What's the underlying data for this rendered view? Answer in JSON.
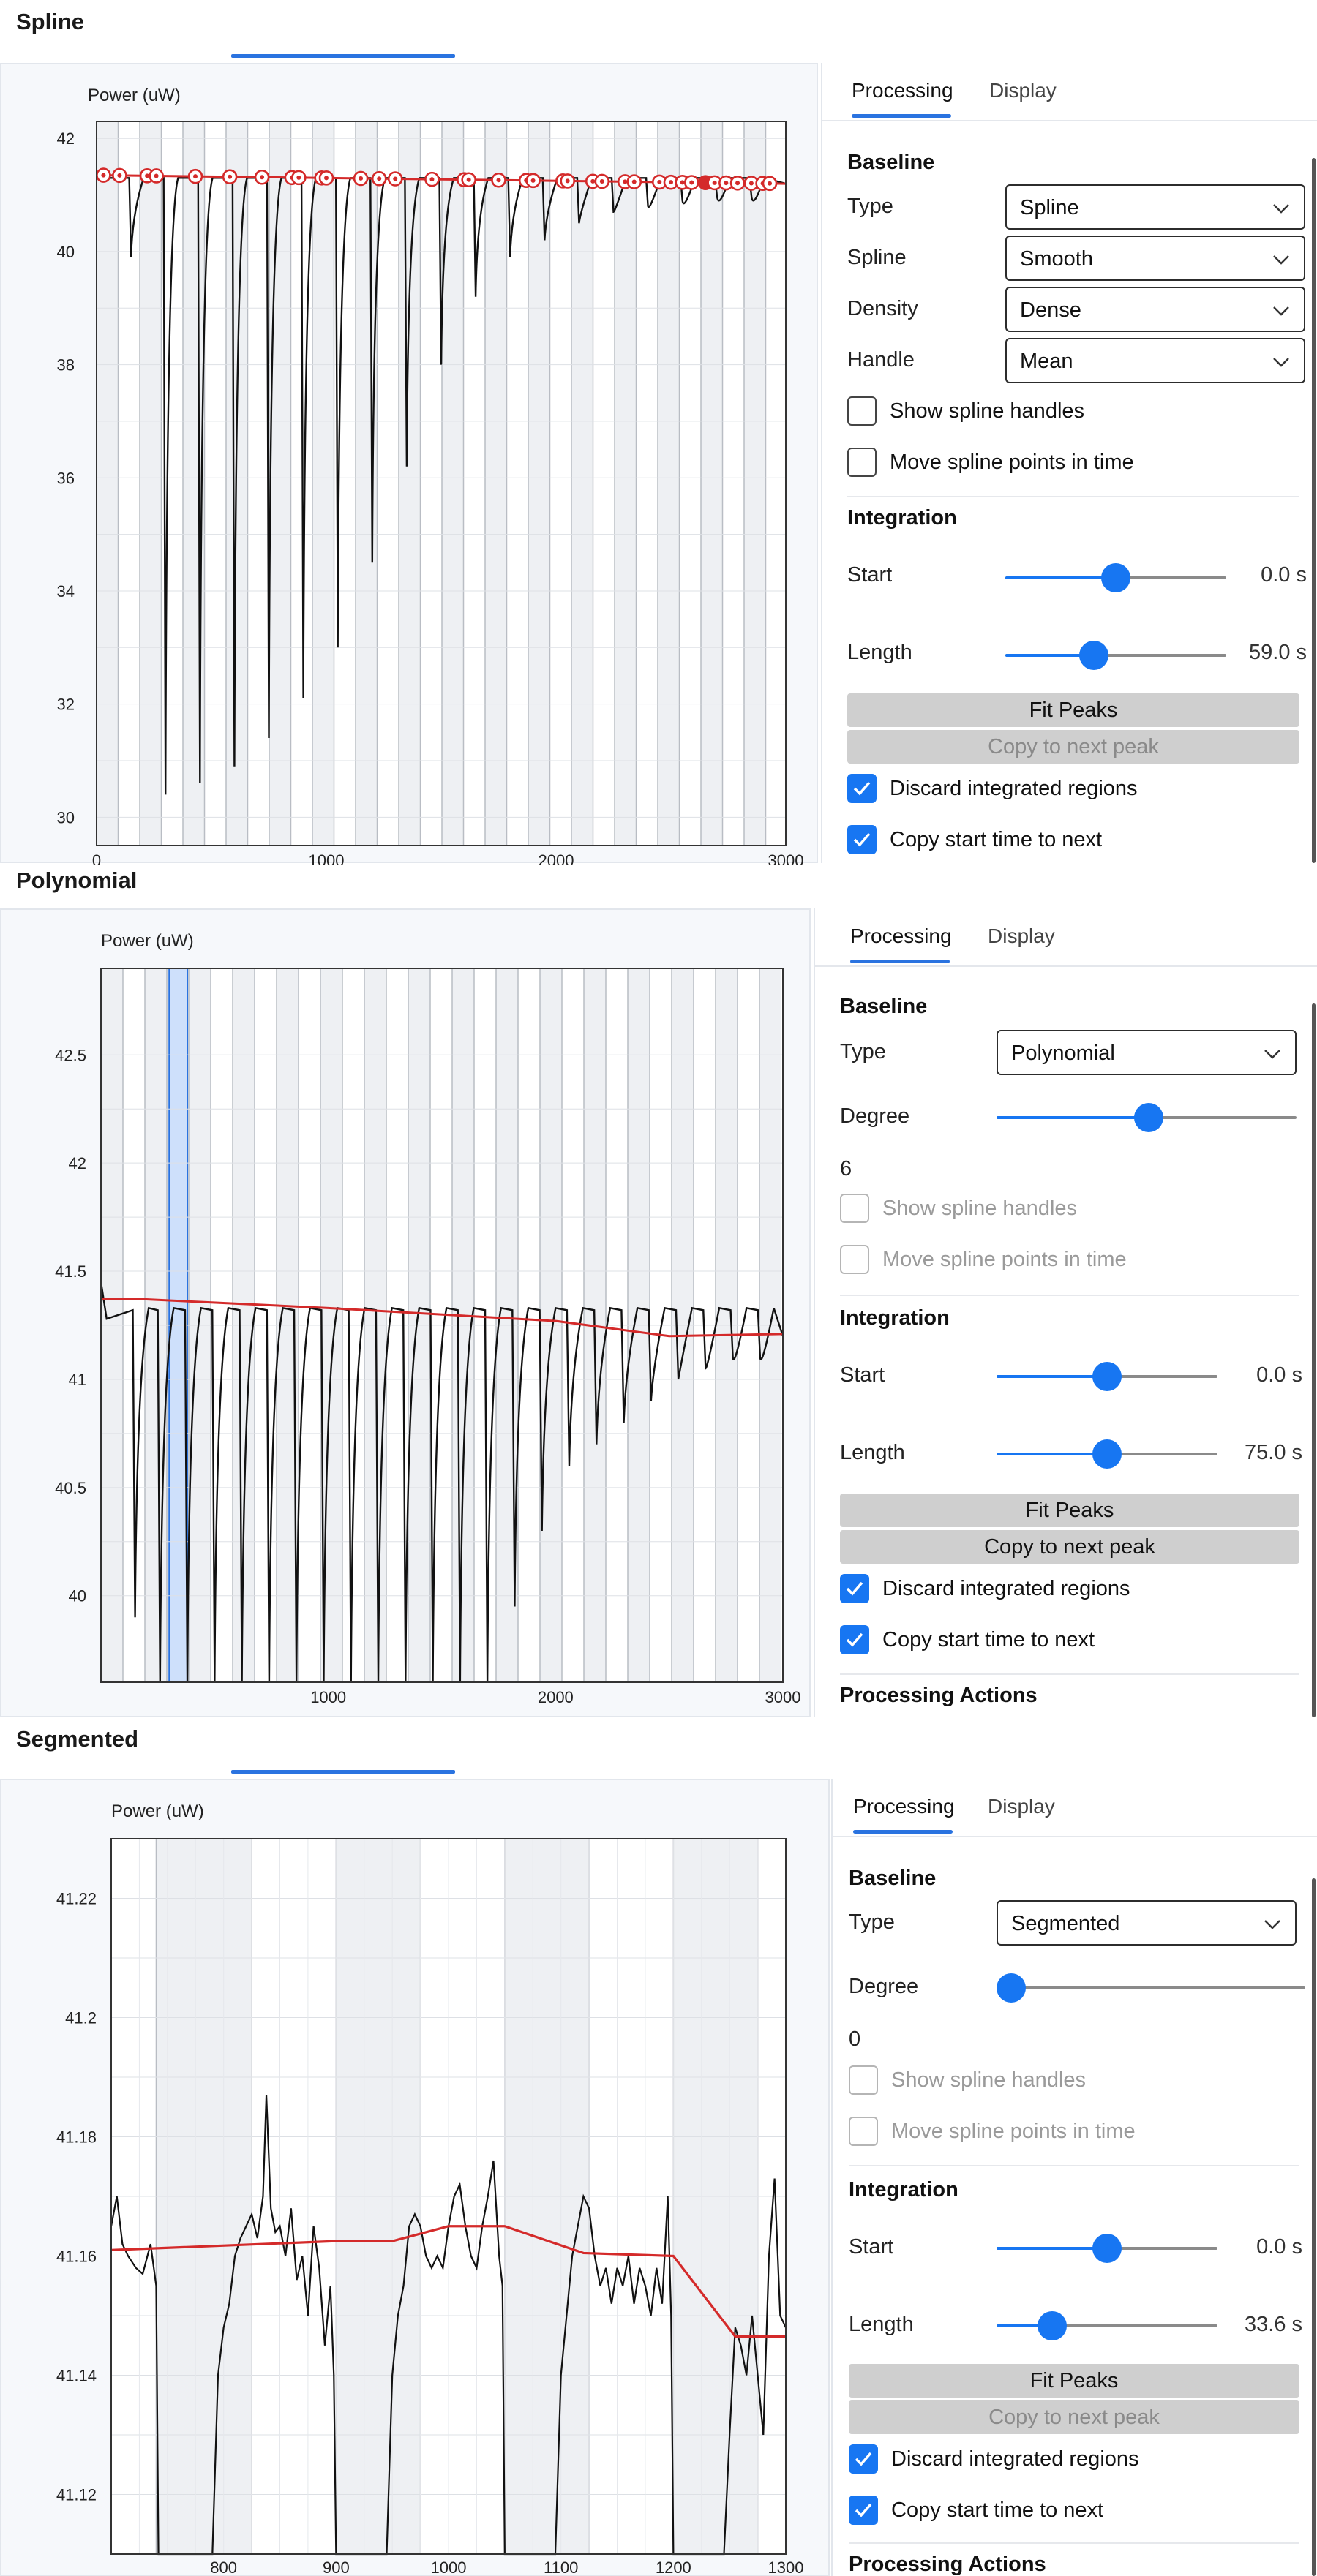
{
  "sections": [
    {
      "title": "Spline",
      "tabs": {
        "processing": "Processing",
        "display": "Display"
      },
      "baseline_header": "Baseline",
      "type_label": "Type",
      "type_value": "Spline",
      "spline_label": "Spline",
      "spline_value": "Smooth",
      "density_label": "Density",
      "density_value": "Dense",
      "handle_label": "Handle",
      "handle_value": "Mean",
      "show_handles_label": "Show spline handles",
      "move_points_label": "Move spline points in time",
      "integration_header": "Integration",
      "start_label": "Start",
      "start_value": "0.0 s",
      "start_fraction": 0.5,
      "length_label": "Length",
      "length_value": "59.0 s",
      "length_fraction": 0.4,
      "fit_peaks": "Fit Peaks",
      "copy_next": "Copy to next peak",
      "discard_label": "Discard integrated regions",
      "copy_start_label": "Copy start time to next"
    },
    {
      "title": "Polynomial",
      "tabs": {
        "processing": "Processing",
        "display": "Display"
      },
      "baseline_header": "Baseline",
      "type_label": "Type",
      "type_value": "Polynomial",
      "degree_label": "Degree",
      "degree_value": "6",
      "degree_fraction": 0.5,
      "show_handles_label": "Show spline handles",
      "move_points_label": "Move spline points in time",
      "integration_header": "Integration",
      "start_label": "Start",
      "start_value": "0.0 s",
      "start_fraction": 0.5,
      "length_label": "Length",
      "length_value": "75.0 s",
      "length_fraction": 0.5,
      "fit_peaks": "Fit Peaks",
      "copy_next": "Copy to next peak",
      "discard_label": "Discard integrated regions",
      "copy_start_label": "Copy start time to next",
      "actions_header": "Processing Actions"
    },
    {
      "title": "Segmented",
      "tabs": {
        "processing": "Processing",
        "display": "Display"
      },
      "baseline_header": "Baseline",
      "type_label": "Type",
      "type_value": "Segmented",
      "degree_label": "Degree",
      "degree_value": "0",
      "degree_fraction": 0.0,
      "show_handles_label": "Show spline handles",
      "move_points_label": "Move spline points in time",
      "integration_header": "Integration",
      "start_label": "Start",
      "start_value": "0.0 s",
      "start_fraction": 0.5,
      "length_label": "Length",
      "length_value": "33.6 s",
      "length_fraction": 0.25,
      "fit_peaks": "Fit Peaks",
      "copy_next": "Copy to next peak",
      "discard_label": "Discard integrated regions",
      "copy_start_label": "Copy start time to next",
      "actions_header": "Processing Actions"
    }
  ],
  "colors": {
    "accent": "#1776f2",
    "baseline": "#d42a2a",
    "trace": "#111111",
    "button_bg": "#cfcfcf"
  },
  "chart_data": [
    {
      "type": "line",
      "ylabel": "Power (uW)",
      "xlim": [
        0,
        3000
      ],
      "ylim": [
        29.5,
        42.3
      ],
      "x_ticks": [
        0,
        1000,
        2000,
        3000
      ],
      "y_ticks": [
        30,
        32,
        34,
        36,
        38,
        40,
        42
      ],
      "baseline": {
        "x": [
          0,
          3000
        ],
        "y": [
          41.35,
          41.2
        ]
      },
      "trace_level": 41.3,
      "dips": [
        {
          "x": 150,
          "y": 39.9
        },
        {
          "x": 300,
          "y": 30.4
        },
        {
          "x": 450,
          "y": 30.6
        },
        {
          "x": 600,
          "y": 30.9
        },
        {
          "x": 750,
          "y": 31.4
        },
        {
          "x": 900,
          "y": 32.1
        },
        {
          "x": 1050,
          "y": 33.0
        },
        {
          "x": 1200,
          "y": 34.5
        },
        {
          "x": 1350,
          "y": 36.2
        },
        {
          "x": 1500,
          "y": 38.0
        },
        {
          "x": 1650,
          "y": 39.2
        },
        {
          "x": 1800,
          "y": 39.9
        },
        {
          "x": 1950,
          "y": 40.2
        },
        {
          "x": 2100,
          "y": 40.5
        },
        {
          "x": 2250,
          "y": 40.7
        },
        {
          "x": 2400,
          "y": 40.8
        },
        {
          "x": 2550,
          "y": 40.9
        },
        {
          "x": 2700,
          "y": 41.0
        },
        {
          "x": 2850,
          "y": 41.0
        }
      ],
      "handles": [
        30,
        100,
        220,
        260,
        430,
        580,
        720,
        850,
        880,
        980,
        1000,
        1150,
        1230,
        1300,
        1460,
        1600,
        1620,
        1750,
        1870,
        1900,
        2030,
        2050,
        2160,
        2200,
        2300,
        2340,
        2450,
        2500,
        2550,
        2590,
        2650,
        2690,
        2740,
        2790,
        2850,
        2900,
        2930
      ]
    },
    {
      "type": "line",
      "ylabel": "Power (uW)",
      "xlim": [
        0,
        3000
      ],
      "ylim": [
        39.6,
        42.9
      ],
      "x_ticks": [
        1000,
        2000,
        3000
      ],
      "y_ticks": [
        40,
        40.5,
        41,
        41.5,
        42,
        42.5
      ],
      "baseline": {
        "x": [
          0,
          200,
          1000,
          2000,
          2500,
          3000
        ],
        "y": [
          41.37,
          41.37,
          41.33,
          41.27,
          41.2,
          41.21
        ]
      },
      "trace_level": 41.35,
      "dips": [
        {
          "x": 150,
          "y": 39.9
        },
        {
          "x": 260,
          "y": 39.6
        },
        {
          "x": 380,
          "y": 39.6
        },
        {
          "x": 500,
          "y": 39.6
        },
        {
          "x": 620,
          "y": 39.6
        },
        {
          "x": 740,
          "y": 39.6
        },
        {
          "x": 860,
          "y": 39.6
        },
        {
          "x": 980,
          "y": 39.6
        },
        {
          "x": 1100,
          "y": 39.6
        },
        {
          "x": 1220,
          "y": 39.6
        },
        {
          "x": 1340,
          "y": 39.6
        },
        {
          "x": 1460,
          "y": 39.6
        },
        {
          "x": 1580,
          "y": 39.6
        },
        {
          "x": 1700,
          "y": 39.6
        },
        {
          "x": 1820,
          "y": 39.95
        },
        {
          "x": 1940,
          "y": 40.3
        },
        {
          "x": 2060,
          "y": 40.6
        },
        {
          "x": 2180,
          "y": 40.7
        },
        {
          "x": 2300,
          "y": 40.8
        },
        {
          "x": 2420,
          "y": 40.9
        },
        {
          "x": 2540,
          "y": 41.0
        },
        {
          "x": 2660,
          "y": 41.05
        },
        {
          "x": 2780,
          "y": 41.1
        },
        {
          "x": 2900,
          "y": 41.1
        }
      ],
      "highlight": [
        300,
        380
      ]
    },
    {
      "type": "line",
      "ylabel": "Power (uW)",
      "xlim": [
        700,
        1300
      ],
      "ylim": [
        41.11,
        41.23
      ],
      "x_ticks": [
        800,
        900,
        1000,
        1100,
        1200,
        1300
      ],
      "y_ticks": [
        41.12,
        41.14,
        41.16,
        41.18,
        41.2,
        41.22
      ],
      "baseline": {
        "x": [
          700,
          900,
          950,
          1000,
          1050,
          1120,
          1200,
          1255,
          1300
        ],
        "y": [
          41.161,
          41.1625,
          41.1625,
          41.165,
          41.165,
          41.1605,
          41.16,
          41.1465,
          41.1465
        ]
      },
      "trace": {
        "x": [
          700,
          705,
          710,
          715,
          722,
          728,
          735,
          740,
          742,
          745,
          790,
          795,
          800,
          805,
          810,
          815,
          820,
          825,
          830,
          835,
          838,
          842,
          846,
          850,
          855,
          860,
          865,
          870,
          875,
          880,
          885,
          890,
          895,
          898,
          900,
          945,
          950,
          955,
          960,
          965,
          970,
          975,
          980,
          985,
          990,
          995,
          1000,
          1005,
          1010,
          1015,
          1020,
          1025,
          1030,
          1035,
          1040,
          1045,
          1048,
          1050,
          1095,
          1100,
          1105,
          1110,
          1115,
          1120,
          1125,
          1130,
          1135,
          1140,
          1145,
          1150,
          1155,
          1160,
          1165,
          1170,
          1175,
          1180,
          1185,
          1190,
          1195,
          1198,
          1200,
          1245,
          1250,
          1255,
          1260,
          1265,
          1270,
          1275,
          1280,
          1285,
          1290,
          1295,
          1300
        ],
        "y": [
          41.165,
          41.17,
          41.162,
          41.16,
          41.158,
          41.157,
          41.162,
          41.155,
          41.11,
          41.11,
          41.11,
          41.14,
          41.148,
          41.152,
          41.16,
          41.163,
          41.165,
          41.167,
          41.163,
          41.17,
          41.187,
          41.168,
          41.164,
          41.165,
          41.16,
          41.168,
          41.156,
          41.16,
          41.15,
          41.165,
          41.158,
          41.145,
          41.155,
          41.14,
          41.11,
          41.11,
          41.14,
          41.15,
          41.155,
          41.165,
          41.167,
          41.165,
          41.16,
          41.158,
          41.16,
          41.158,
          41.165,
          41.17,
          41.172,
          41.165,
          41.16,
          41.158,
          41.165,
          41.17,
          41.176,
          41.16,
          41.155,
          41.11,
          41.11,
          41.14,
          41.15,
          41.16,
          41.165,
          41.17,
          41.168,
          41.16,
          41.155,
          41.158,
          41.152,
          41.158,
          41.155,
          41.16,
          41.152,
          41.158,
          41.155,
          41.15,
          41.158,
          41.152,
          41.17,
          41.15,
          41.11,
          41.11,
          41.13,
          41.148,
          41.145,
          41.14,
          41.15,
          41.14,
          41.13,
          41.16,
          41.173,
          41.15,
          41.148
        ]
      },
      "shaded": [
        [
          740,
          825
        ],
        [
          900,
          975
        ],
        [
          1050,
          1125
        ],
        [
          1200,
          1275
        ]
      ]
    }
  ]
}
